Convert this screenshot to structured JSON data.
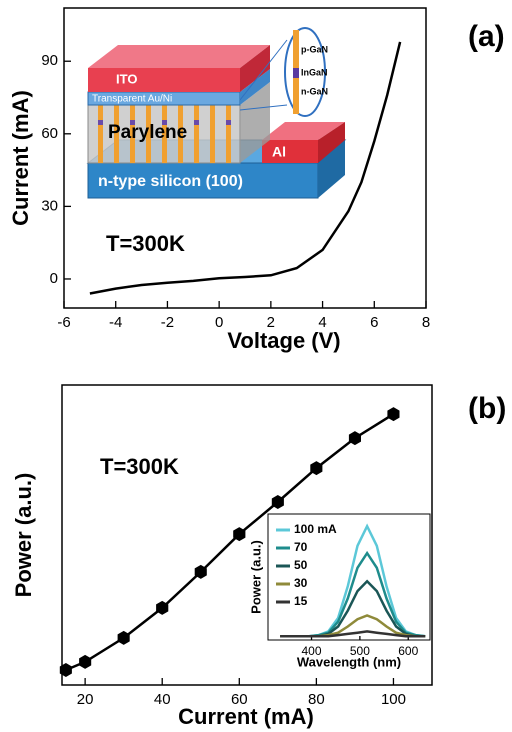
{
  "chart_data": [
    {
      "type": "line",
      "panel_label": "(a)",
      "annotation": "T=300K",
      "xlabel": "Voltage (V)",
      "ylabel": "Current (mA)",
      "x": [
        -5,
        -4,
        -3,
        -2,
        -1,
        0,
        1,
        2,
        3,
        4,
        5,
        5.5,
        6,
        6.5,
        7
      ],
      "values": [
        -6,
        -4,
        -2.5,
        -1.6,
        -0.8,
        0.3,
        0.8,
        1.5,
        4.5,
        12,
        28,
        40,
        57,
        76,
        98
      ],
      "color": "#000000",
      "xlim": [
        -6,
        8
      ],
      "ylim": [
        -12,
        112
      ],
      "xticks": [
        -6,
        -4,
        -2,
        0,
        2,
        4,
        6,
        8
      ],
      "yticks": [
        0,
        30,
        60,
        90
      ],
      "inset_labels": [
        "ITO",
        "Transparent Au/Ni",
        "Parylene",
        "Al",
        "n-type silicon (100)",
        "p-GaN",
        "InGaN",
        "n-GaN"
      ]
    },
    {
      "type": "line",
      "panel_label": "(b)",
      "annotation": "T=300K",
      "xlabel": "Current (mA)",
      "ylabel": "Power (a.u.)",
      "x": [
        15,
        20,
        30,
        40,
        50,
        60,
        70,
        80,
        90,
        100
      ],
      "values": [
        0.05,
        0.077,
        0.157,
        0.257,
        0.377,
        0.503,
        0.61,
        0.723,
        0.823,
        0.903
      ],
      "color": "#000000",
      "marker": "hexagon",
      "xlim": [
        14,
        110
      ],
      "ylim": [
        0,
        1
      ],
      "xticks": [
        20,
        40,
        60,
        80,
        100
      ]
    },
    {
      "type": "line",
      "xlabel": "Wavelength (nm)",
      "ylabel": "Power (a.u.)",
      "x": [
        335,
        355,
        375,
        395,
        415,
        435,
        455,
        475,
        495,
        515,
        535,
        555,
        575,
        595,
        615,
        635
      ],
      "series": [
        {
          "name": "100 mA",
          "color": "#5cc8d8",
          "values": [
            0,
            0,
            0,
            0,
            0.01,
            0.04,
            0.15,
            0.41,
            0.74,
            0.9,
            0.74,
            0.41,
            0.15,
            0.04,
            0.01,
            0
          ]
        },
        {
          "name": "70",
          "color": "#1e8c8c",
          "values": [
            0,
            0,
            0,
            0,
            0.01,
            0.03,
            0.12,
            0.31,
            0.56,
            0.68,
            0.56,
            0.31,
            0.12,
            0.03,
            0.01,
            0
          ]
        },
        {
          "name": "50",
          "color": "#1b5656",
          "values": [
            0,
            0,
            0,
            0,
            0,
            0.02,
            0.08,
            0.21,
            0.37,
            0.45,
            0.37,
            0.21,
            0.08,
            0.02,
            0,
            0
          ]
        },
        {
          "name": "30",
          "color": "#8f8a3a",
          "values": [
            0,
            0,
            0,
            0,
            0,
            0.01,
            0.03,
            0.08,
            0.14,
            0.17,
            0.14,
            0.08,
            0.03,
            0.01,
            0,
            0
          ]
        },
        {
          "name": "15",
          "color": "#333333",
          "values": [
            0,
            0,
            0,
            0,
            0,
            0,
            0.01,
            0.02,
            0.03,
            0.04,
            0.03,
            0.02,
            0.01,
            0,
            0,
            0
          ]
        }
      ],
      "xlim": [
        310,
        645
      ],
      "ylim": [
        -0.03,
        1
      ],
      "xticks": [
        400,
        500,
        600
      ]
    }
  ]
}
